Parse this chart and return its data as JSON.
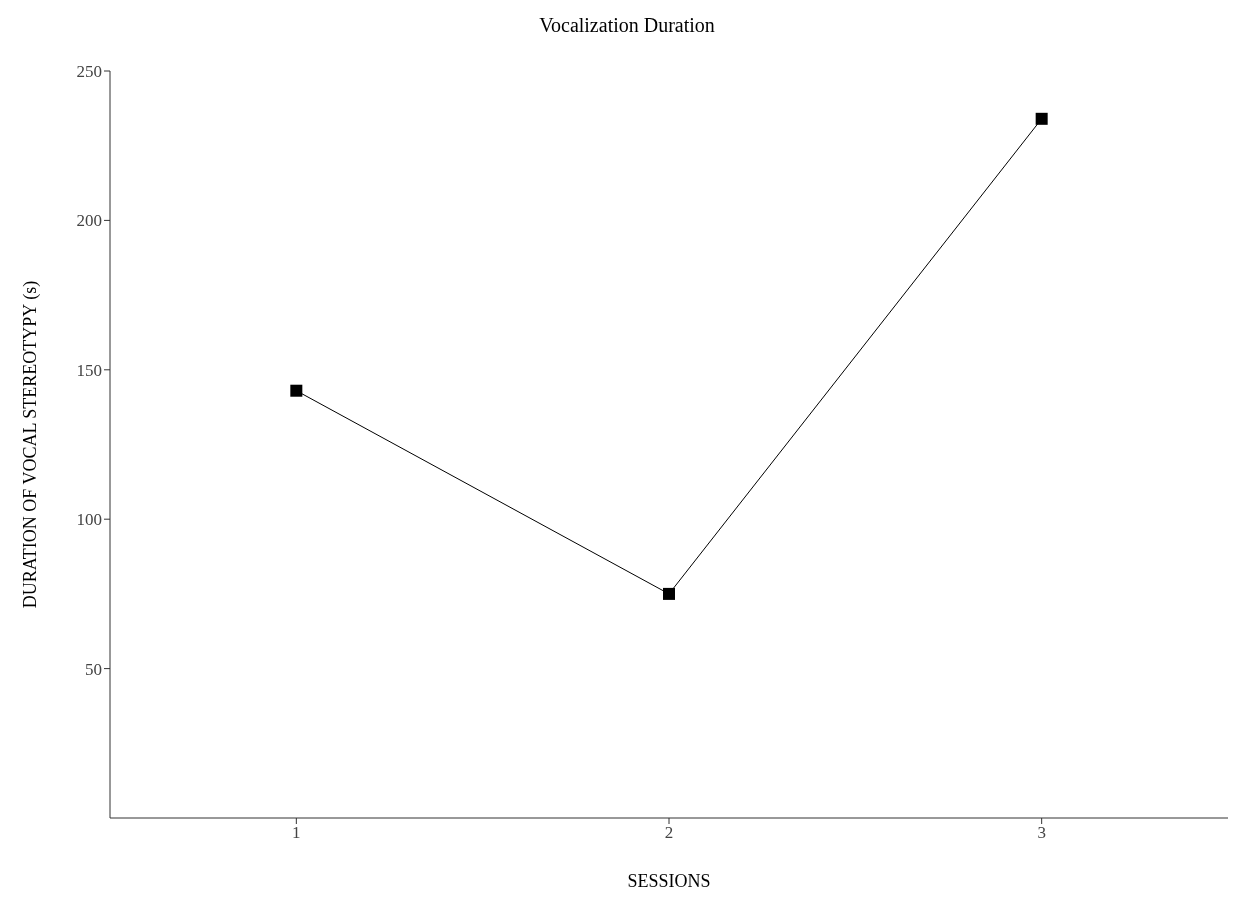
{
  "chart_data": {
    "type": "line",
    "title": "Vocalization Duration",
    "xlabel": "SESSIONS",
    "ylabel": "DURATION OF VOCAL STEREOTYPY (s)",
    "categories": [
      "1",
      "2",
      "3"
    ],
    "series": [
      {
        "color": "#000000",
        "values": [
          143,
          75,
          234
        ]
      }
    ],
    "ylim": [
      0,
      250
    ],
    "yticks": [
      50,
      100,
      150,
      200,
      250
    ],
    "grid": false,
    "legend": false,
    "marker": "square",
    "line_style": "solid"
  }
}
